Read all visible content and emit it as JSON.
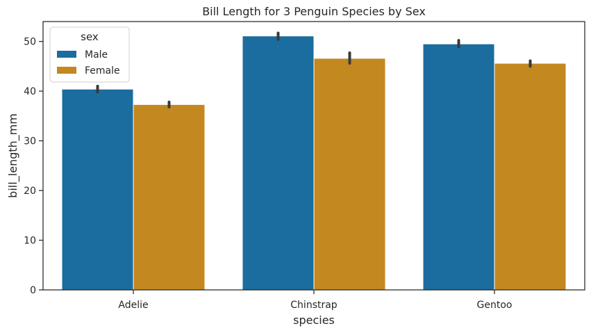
{
  "chart_data": {
    "type": "bar",
    "title": "Bill Length for 3 Penguin Species by Sex",
    "xlabel": "species",
    "ylabel": "bill_length_mm",
    "categories": [
      "Adelie",
      "Chinstrap",
      "Gentoo"
    ],
    "series": [
      {
        "name": "Male",
        "color": "#1a6d9e",
        "values": [
          40.4,
          51.1,
          49.5
        ],
        "errors": [
          [
            39.8,
            41.0
          ],
          [
            50.4,
            51.7
          ],
          [
            48.9,
            50.2
          ]
        ]
      },
      {
        "name": "Female",
        "color": "#c38820",
        "values": [
          37.3,
          46.6,
          45.6
        ],
        "errors": [
          [
            36.8,
            37.8
          ],
          [
            45.6,
            47.7
          ],
          [
            45.0,
            46.1
          ]
        ]
      }
    ],
    "yticks": [
      0,
      10,
      20,
      30,
      40,
      50
    ],
    "ylim": [
      0,
      54
    ],
    "grid": false,
    "legend": {
      "title": "sex",
      "placement": "top-left",
      "entries": [
        "Male",
        "Female"
      ]
    }
  }
}
